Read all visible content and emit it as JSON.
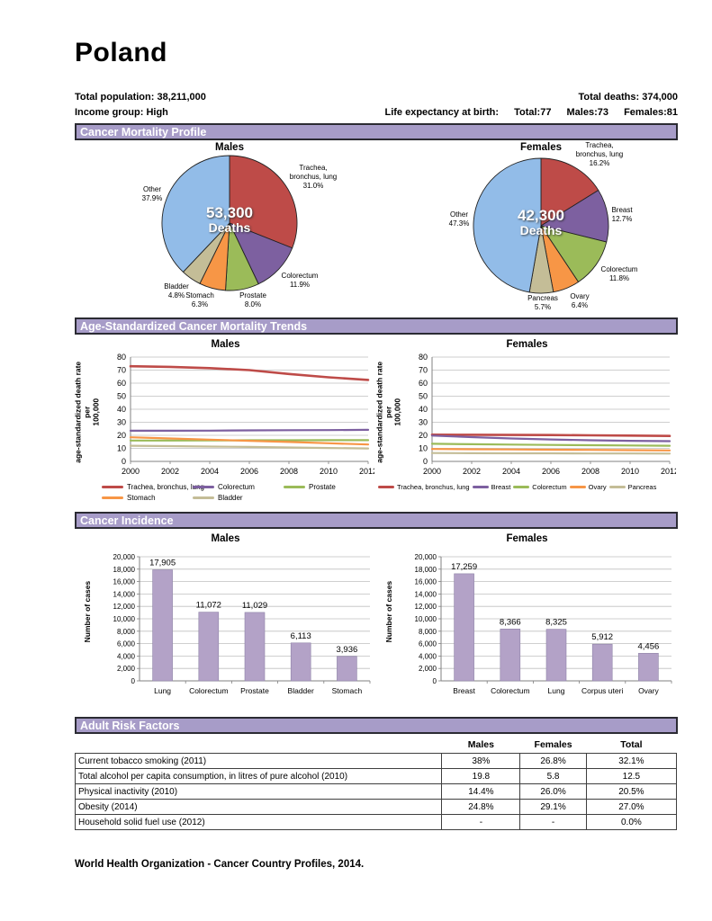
{
  "page": {
    "title": "Poland",
    "footer": "World Health Organization - Cancer Country Profiles, 2014."
  },
  "header": {
    "total_population": {
      "label": "Total population:",
      "value": "38,211,000"
    },
    "income_group": {
      "label": "Income group:",
      "value": "High"
    },
    "total_deaths": {
      "label": "Total deaths:",
      "value": "374,000"
    },
    "life_expectancy": {
      "label": "Life expectancy at birth:",
      "total": "Total:77",
      "males": "Males:73",
      "females": "Females:81"
    }
  },
  "section_titles": {
    "mortality": "Cancer Mortality Profile",
    "trends": "Age-Standardized Cancer Mortality Trends",
    "incidence": "Cancer Incidence",
    "risk": "Adult Risk Factors"
  },
  "colors": {
    "section_bar_bg": "#A79CC8",
    "grid": "#BFBFBF",
    "axis": "#808080",
    "bar_fill": "#B3A2C7"
  },
  "chart_data": [
    {
      "type": "pie",
      "title": "Males",
      "center_value": "53,300",
      "center_word": "Deaths",
      "slices": [
        {
          "label": "Trachea,\nbronchus, lung",
          "pct_label": "31.0%",
          "value": 31.0,
          "color": "#BE4B48"
        },
        {
          "label": "Colorectum",
          "pct_label": "11.9%",
          "value": 11.9,
          "color": "#7D60A0"
        },
        {
          "label": "Prostate",
          "pct_label": "8.0%",
          "value": 8.0,
          "color": "#9BBB59"
        },
        {
          "label": "Stomach",
          "pct_label": "6.3%",
          "value": 6.3,
          "color": "#F79646"
        },
        {
          "label": "Bladder",
          "pct_label": "4.8%",
          "value": 4.8,
          "color": "#C4BD97"
        },
        {
          "label": "Other",
          "pct_label": "37.9%",
          "value": 37.9,
          "color": "#92BCE8"
        }
      ]
    },
    {
      "type": "pie",
      "title": "Females",
      "center_value": "42,300",
      "center_word": "Deaths",
      "slices": [
        {
          "label": "Trachea,\nbronchus, lung",
          "pct_label": "16.2%",
          "value": 16.2,
          "color": "#BE4B48"
        },
        {
          "label": "Breast",
          "pct_label": "12.7%",
          "value": 12.7,
          "color": "#7D60A0"
        },
        {
          "label": "Colorectum",
          "pct_label": "11.8%",
          "value": 11.8,
          "color": "#9BBB59"
        },
        {
          "label": "Ovary",
          "pct_label": "6.4%",
          "value": 6.4,
          "color": "#F79646"
        },
        {
          "label": "Pancreas",
          "pct_label": "5.7%",
          "value": 5.7,
          "color": "#C4BD97"
        },
        {
          "label": "Other",
          "pct_label": "47.3%",
          "value": 47.3,
          "color": "#92BCE8"
        }
      ]
    },
    {
      "type": "line",
      "title": "Males",
      "ylabel": "age-standardized death rate per\n100,000",
      "ylim": [
        0,
        80
      ],
      "ytick": 10,
      "x": [
        2000,
        2002,
        2004,
        2006,
        2008,
        2010,
        2012
      ],
      "legend_layout": "cols3",
      "series": [
        {
          "name": "Trachea, bronchus, lung",
          "color": "#BE4B48",
          "width": 2.6,
          "values": [
            73,
            72.5,
            71.5,
            70,
            67,
            64.5,
            62.5
          ]
        },
        {
          "name": "Colorectum",
          "color": "#7D60A0",
          "width": 2.2,
          "values": [
            23.5,
            23.5,
            23.6,
            23.8,
            23.9,
            24,
            24.2
          ]
        },
        {
          "name": "Prostate",
          "color": "#9BBB59",
          "width": 2.2,
          "values": [
            16,
            16,
            16.1,
            16.2,
            16.2,
            16.3,
            16.3
          ]
        },
        {
          "name": "Stomach",
          "color": "#F79646",
          "width": 2.2,
          "values": [
            18.5,
            17.6,
            16.7,
            15.8,
            14.9,
            13.9,
            13
          ]
        },
        {
          "name": "Bladder",
          "color": "#C4BD97",
          "width": 2.2,
          "values": [
            12,
            11.7,
            11.4,
            11.1,
            10.7,
            10.3,
            9.9
          ]
        }
      ]
    },
    {
      "type": "line",
      "title": "Females",
      "ylabel": "age-standardized death rate per\n100,000",
      "ylim": [
        0,
        80
      ],
      "ytick": 10,
      "x": [
        2000,
        2002,
        2004,
        2006,
        2008,
        2010,
        2012
      ],
      "legend_layout": "row1",
      "series": [
        {
          "name": "Trachea, bronchus, lung",
          "color": "#BE4B48",
          "width": 2.6,
          "values": [
            20.5,
            20.4,
            20.3,
            20.2,
            20,
            19.8,
            19.5
          ]
        },
        {
          "name": "Breast",
          "color": "#7D60A0",
          "width": 2.2,
          "values": [
            19.8,
            18.6,
            17.6,
            16.8,
            16.2,
            15.8,
            15.5
          ]
        },
        {
          "name": "Colorectum",
          "color": "#9BBB59",
          "width": 2.2,
          "values": [
            13.5,
            13.2,
            12.9,
            12.6,
            12.4,
            12.2,
            12
          ]
        },
        {
          "name": "Ovary",
          "color": "#F79646",
          "width": 2.2,
          "values": [
            9.5,
            9.3,
            9.2,
            9,
            8.8,
            8.6,
            8.4
          ]
        },
        {
          "name": "Pancreas",
          "color": "#C4BD97",
          "width": 2.2,
          "values": [
            6.4,
            6.3,
            6.2,
            6.2,
            6.1,
            6.1,
            6
          ]
        }
      ]
    },
    {
      "type": "bar",
      "title": "Males",
      "ylabel": "Number of cases",
      "ylim": [
        0,
        20000
      ],
      "ytick": 2000,
      "categories": [
        "Lung",
        "Colorectum",
        "Prostate",
        "Bladder",
        "Stomach"
      ],
      "values": [
        17905,
        11072,
        11029,
        6113,
        3936
      ],
      "value_labels": [
        "17,905",
        "11,072",
        "11,029",
        "6,113",
        "3,936"
      ],
      "bar_color": "#B3A2C7"
    },
    {
      "type": "bar",
      "title": "Females",
      "ylabel": "Number of cases",
      "ylim": [
        0,
        20000
      ],
      "ytick": 2000,
      "categories": [
        "Breast",
        "Colorectum",
        "Lung",
        "Corpus uteri",
        "Ovary"
      ],
      "values": [
        17259,
        8366,
        8325,
        5912,
        4456
      ],
      "value_labels": [
        "17,259",
        "8,366",
        "8,325",
        "5,912",
        "4,456"
      ],
      "bar_color": "#B3A2C7"
    }
  ],
  "risk_factors": {
    "columns": [
      "Males",
      "Females",
      "Total"
    ],
    "rows": [
      {
        "label": "Current tobacco smoking (2011)",
        "values": [
          "38%",
          "26.8%",
          "32.1%"
        ]
      },
      {
        "label": "Total alcohol per capita consumption, in litres of pure alcohol (2010)",
        "values": [
          "19.8",
          "5.8",
          "12.5"
        ]
      },
      {
        "label": "Physical inactivity (2010)",
        "values": [
          "14.4%",
          "26.0%",
          "20.5%"
        ]
      },
      {
        "label": "Obesity (2014)",
        "values": [
          "24.8%",
          "29.1%",
          "27.0%"
        ]
      },
      {
        "label": "Household solid fuel use (2012)",
        "values": [
          "-",
          "-",
          "0.0%"
        ]
      }
    ]
  }
}
